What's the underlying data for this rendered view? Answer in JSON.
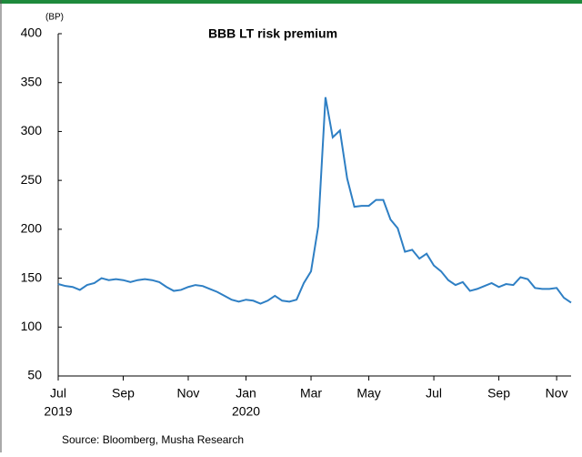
{
  "chart_data": {
    "type": "line",
    "title": "BBB LT risk premium",
    "y_unit": "(BP)",
    "source": "Source: Bloomberg,  Musha Research",
    "categories": [
      "Jul",
      null,
      null,
      null,
      null,
      null,
      null,
      null,
      null,
      "Sep",
      null,
      null,
      null,
      null,
      null,
      null,
      null,
      null,
      "Nov",
      null,
      null,
      null,
      null,
      null,
      null,
      null,
      "Jan",
      null,
      null,
      null,
      null,
      null,
      null,
      null,
      null,
      "Mar",
      null,
      null,
      null,
      null,
      null,
      null,
      null,
      "May",
      null,
      null,
      null,
      null,
      null,
      null,
      null,
      null,
      "Jul",
      null,
      null,
      null,
      null,
      null,
      null,
      null,
      null,
      "Sep",
      null,
      null,
      null,
      null,
      null,
      null,
      null,
      "Nov",
      null,
      null
    ],
    "category_years": [
      "2019",
      null,
      null,
      null,
      null,
      null,
      null,
      null,
      null,
      null,
      null,
      null,
      null,
      null,
      null,
      null,
      null,
      null,
      null,
      null,
      null,
      null,
      null,
      null,
      null,
      null,
      "2020",
      null,
      null,
      null,
      null,
      null,
      null,
      null,
      null,
      null,
      null,
      null,
      null,
      null,
      null,
      null,
      null,
      null,
      null,
      null,
      null,
      null,
      null,
      null,
      null,
      null,
      null,
      null,
      null,
      null,
      null,
      null,
      null,
      null,
      null,
      null,
      null,
      null,
      null,
      null,
      null,
      null,
      null,
      null,
      null,
      null
    ],
    "series": [
      {
        "name": "BBB LT risk premium",
        "color": "#2e7fc4",
        "values": [
          144,
          142,
          141,
          138,
          143,
          145,
          150,
          148,
          149,
          148,
          146,
          148,
          149,
          148,
          146,
          141,
          137,
          138,
          141,
          143,
          142,
          139,
          136,
          132,
          128,
          126,
          128,
          127,
          124,
          127,
          132,
          127,
          126,
          128,
          145,
          157,
          203,
          335,
          294,
          301,
          252,
          223,
          224,
          224,
          230,
          230,
          210,
          201,
          177,
          179,
          170,
          175,
          163,
          157,
          148,
          143,
          146,
          137,
          139,
          142,
          145,
          141,
          144,
          143,
          151,
          149,
          140,
          139,
          139,
          140,
          130,
          125
        ]
      }
    ],
    "ylim": [
      50,
      400
    ],
    "yticks": [
      50,
      100,
      150,
      200,
      250,
      300,
      350,
      400
    ]
  }
}
